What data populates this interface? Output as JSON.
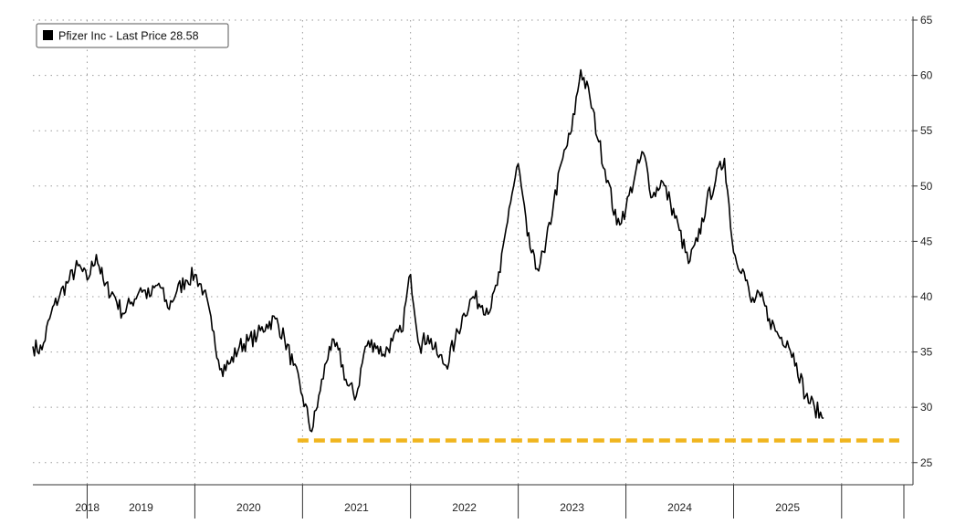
{
  "chart_data": {
    "type": "line",
    "legend": {
      "label": "Pfizer Inc - Last Price 28.58",
      "placement": "top-left"
    },
    "ylim": [
      23,
      65
    ],
    "y_ticks": [
      25,
      30,
      35,
      40,
      45,
      50,
      55,
      60,
      65
    ],
    "y_axis_side": "right",
    "grid": true,
    "x_range": [
      "2017-07-01",
      "2025-08-31"
    ],
    "x_period_labels": [
      "2018",
      "2019",
      "2020",
      "2021",
      "2022",
      "2023",
      "2024",
      "2025"
    ],
    "x_period_separators": [
      "2018-01-01",
      "2019-01-01",
      "2020-01-01",
      "2021-01-01",
      "2022-01-01",
      "2023-01-01",
      "2024-01-01",
      "2025-01-01",
      "2026-01-01"
    ],
    "series": [
      {
        "name": "Pfizer Inc - Last Price",
        "color": "#000000",
        "x": [
          "2017-07-01",
          "2017-08-01",
          "2017-09-01",
          "2017-10-01",
          "2017-11-01",
          "2017-12-01",
          "2018-01-01",
          "2018-02-01",
          "2018-03-01",
          "2018-04-01",
          "2018-05-01",
          "2018-06-01",
          "2018-07-01",
          "2018-08-01",
          "2018-09-01",
          "2018-10-01",
          "2018-11-01",
          "2018-12-01",
          "2019-01-01",
          "2019-02-01",
          "2019-03-01",
          "2019-04-01",
          "2019-05-01",
          "2019-06-01",
          "2019-07-01",
          "2019-08-01",
          "2019-09-01",
          "2019-10-01",
          "2019-11-01",
          "2019-12-01",
          "2020-01-01",
          "2020-02-01",
          "2020-03-01",
          "2020-04-01",
          "2020-05-01",
          "2020-06-01",
          "2020-07-01",
          "2020-08-01",
          "2020-09-01",
          "2020-10-01",
          "2020-11-01",
          "2020-12-01",
          "2021-01-01",
          "2021-02-01",
          "2021-03-01",
          "2021-04-01",
          "2021-05-01",
          "2021-06-01",
          "2021-07-01",
          "2021-08-01",
          "2021-09-01",
          "2021-10-01",
          "2021-11-01",
          "2021-12-01",
          "2022-01-01",
          "2022-02-01",
          "2022-03-01",
          "2022-04-01",
          "2022-05-01",
          "2022-06-01",
          "2022-07-01",
          "2022-08-01",
          "2022-09-01",
          "2022-10-01",
          "2022-11-01",
          "2022-12-01",
          "2023-01-01",
          "2023-02-01",
          "2023-03-01",
          "2023-04-01",
          "2023-05-01",
          "2023-06-01",
          "2023-07-01",
          "2023-08-01",
          "2023-09-01",
          "2023-10-01",
          "2023-11-01",
          "2023-12-01",
          "2024-01-01",
          "2024-02-01",
          "2024-03-01",
          "2024-04-01",
          "2024-05-01",
          "2024-06-01",
          "2024-07-01",
          "2024-08-01",
          "2024-09-01",
          "2024-10-01",
          "2024-11-01"
        ],
        "values": [
          35.5,
          35.2,
          38.5,
          40.2,
          41.5,
          42.8,
          41.5,
          43.8,
          41.0,
          40.2,
          38.5,
          39.5,
          40.8,
          40.0,
          41.2,
          39.0,
          40.5,
          41.5,
          42.0,
          40.5,
          37.0,
          33.5,
          34.0,
          35.5,
          36.0,
          36.5,
          37.5,
          38.0,
          36.2,
          33.8,
          31.0,
          27.8,
          31.5,
          35.5,
          35.2,
          32.0,
          31.0,
          35.5,
          35.8,
          34.8,
          36.0,
          36.8,
          42.0,
          35.5,
          36.5,
          34.8,
          33.8,
          36.0,
          38.5,
          40.0,
          39.2,
          39.0,
          42.2,
          48.0,
          52.0,
          45.5,
          42.5,
          44.0,
          48.5,
          52.5,
          55.0,
          60.5,
          58.0,
          54.0,
          50.5,
          46.5,
          48.0,
          51.0,
          53.0,
          49.0,
          50.5,
          48.5,
          46.0,
          43.0,
          45.0,
          48.5,
          50.5,
          52.5,
          44.0,
          42.5,
          39.5,
          40.0,
          38.0,
          36.5,
          36.0,
          34.0,
          31.0,
          30.0,
          29.0
        ]
      }
    ],
    "reference_line": {
      "value": 27,
      "style": "dashed",
      "color": "#F0B51E",
      "x_start": "2019-12-15",
      "x_end": "2025-08-31"
    }
  }
}
